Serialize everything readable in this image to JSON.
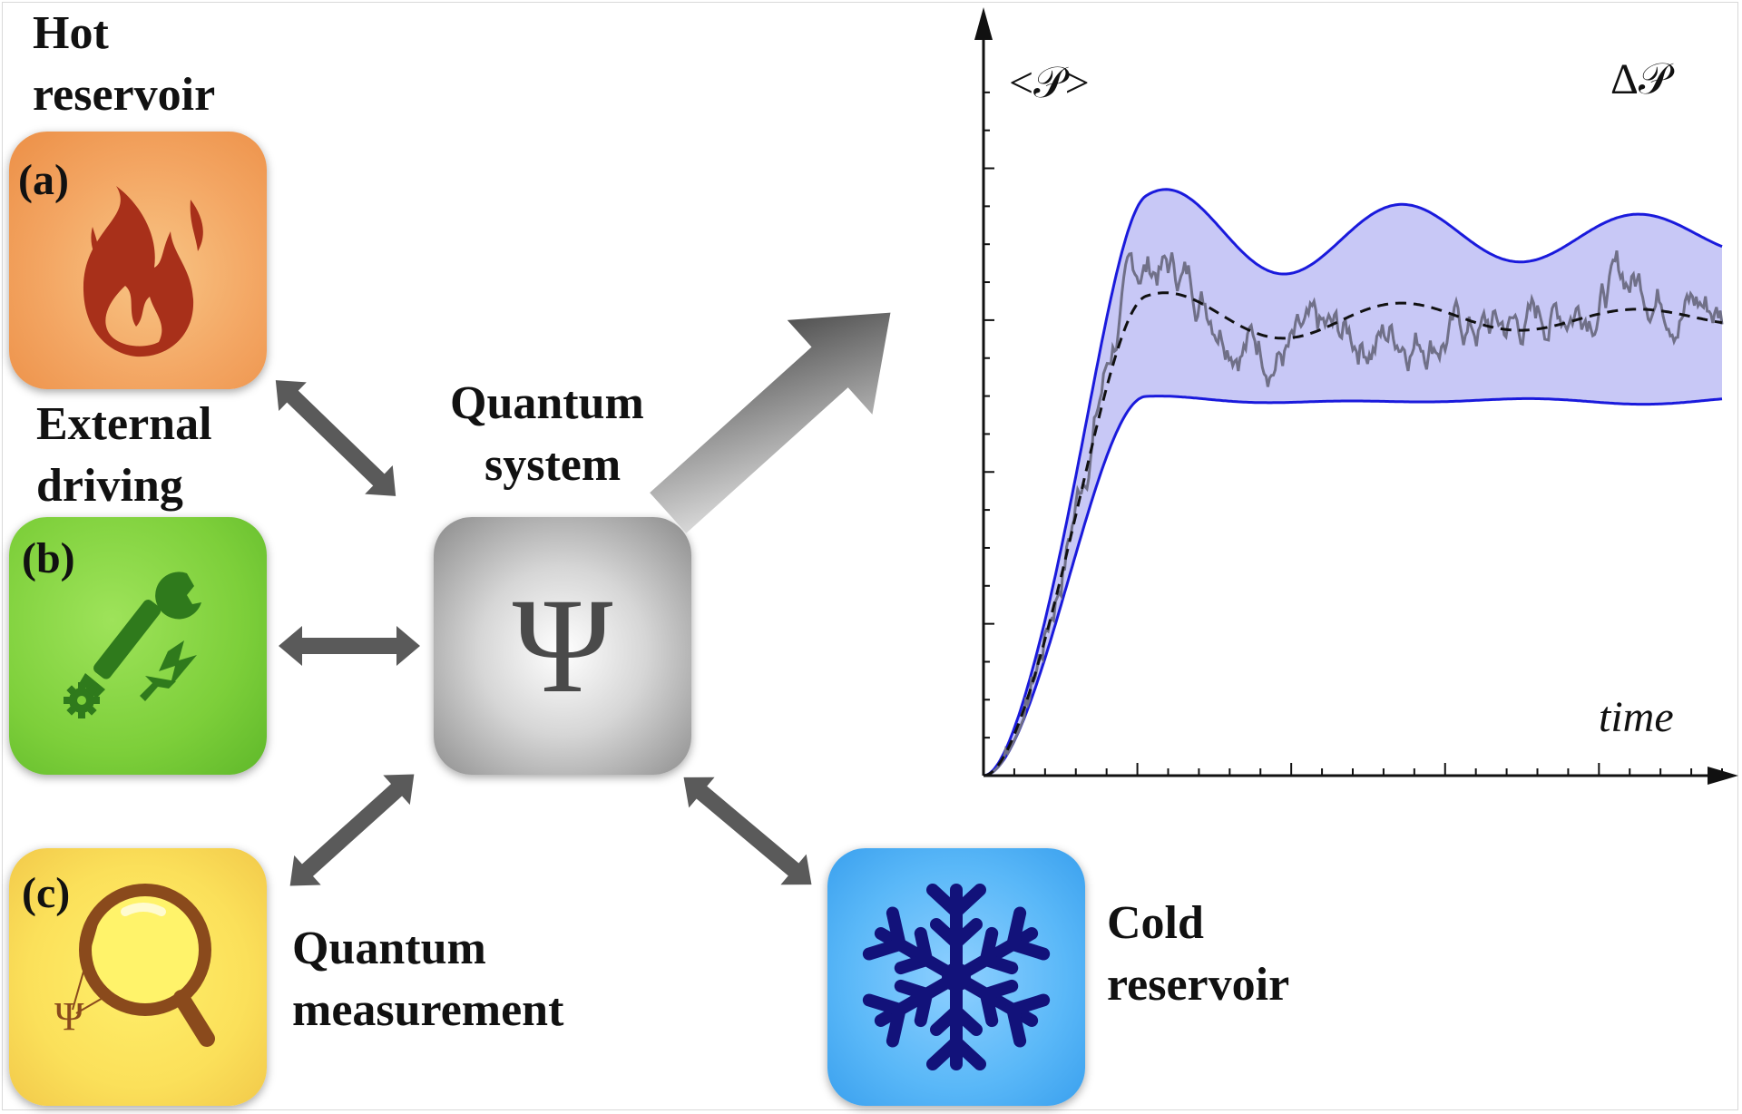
{
  "labels": {
    "hot_line1": "Hot",
    "hot_line2": "reservoir",
    "drive_line1": "External",
    "drive_line2": "driving",
    "system_line1": "Quantum",
    "system_line2": "system",
    "meas_line1": "Quantum",
    "meas_line2": "measurement",
    "cold_line1": "Cold",
    "cold_line2": "reservoir"
  },
  "tags": {
    "a": "(a)",
    "b": "(b)",
    "c": "(c)"
  },
  "symbols": {
    "psi": "Ψ",
    "psi_small": "Ψ"
  },
  "plot_labels": {
    "mean": "<𝒫>",
    "spread": "Δ𝒫",
    "time": "time"
  },
  "icons": {
    "hot": "flame-icon",
    "drive": "wrench-gear-lightning-icon",
    "meas": "magnifier-icon",
    "cold": "snowflake-icon"
  },
  "colors": {
    "hot_tile": "#f3a562",
    "drive_tile": "#7dcf3a",
    "meas_tile": "#fbe05a",
    "system_tile": "#b0b0b0",
    "cold_tile": "#5ab8f8",
    "band_fill": "#c8c8f6",
    "band_edge": "#1a1adc",
    "trajectory": "#707088",
    "mean_line": "#111111",
    "arrow": "#5a5a5a"
  }
}
